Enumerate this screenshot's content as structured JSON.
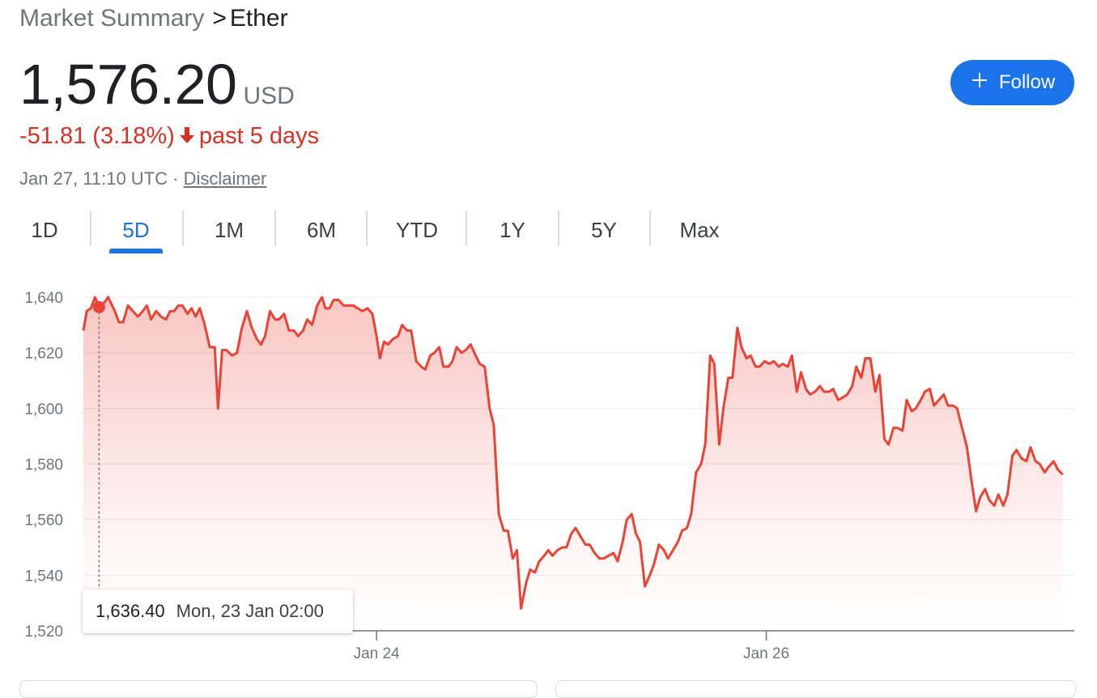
{
  "breadcrumb": {
    "parent": "Market Summary",
    "separator": ">",
    "current": "Ether"
  },
  "quote": {
    "price": "1,576.20",
    "currency": "USD",
    "change": "-51.81 (3.18%)",
    "period": "past 5 days",
    "timestamp": "Jan 27, 11:10 UTC ·",
    "disclaimer": "Disclaimer"
  },
  "follow": {
    "label": "Follow",
    "icon": "plus-icon"
  },
  "tabs": [
    {
      "label": "1D",
      "active": false
    },
    {
      "label": "5D",
      "active": true
    },
    {
      "label": "1M",
      "active": false
    },
    {
      "label": "6M",
      "active": false
    },
    {
      "label": "YTD",
      "active": false
    },
    {
      "label": "1Y",
      "active": false
    },
    {
      "label": "5Y",
      "active": false
    },
    {
      "label": "Max",
      "active": false
    }
  ],
  "tooltip": {
    "value": "1,636.40",
    "date": "Mon, 23 Jan 02:00"
  },
  "colors": {
    "down": "#d93025",
    "line": "#ea4335",
    "accent": "#1a73e8",
    "muted": "#70757a"
  },
  "chart_data": {
    "type": "line",
    "title": "",
    "xlabel": "",
    "ylabel": "",
    "ylim": [
      1520,
      1640
    ],
    "y_ticks": [
      1640,
      1620,
      1600,
      1580,
      1560,
      1540,
      1520
    ],
    "y_tick_labels": [
      "1,640",
      "1,620",
      "1,600",
      "1,580",
      "1,560",
      "1,540",
      "1,520"
    ],
    "x_tick_labels": [
      {
        "label": "Jan 24",
        "t": 35.5
      },
      {
        "label": "Jan 26",
        "t": 82.7
      }
    ],
    "x_unit": "hours",
    "highlight": {
      "t": 1.9,
      "y": 1636.4
    },
    "grid": true,
    "area_fill": true,
    "series": [
      {
        "values": [
          [
            0,
            1628
          ],
          [
            0.4,
            1635
          ],
          [
            0.9,
            1636
          ],
          [
            1.4,
            1640
          ],
          [
            1.9,
            1636.4
          ],
          [
            2.5,
            1638
          ],
          [
            3.0,
            1640
          ],
          [
            3.8,
            1635
          ],
          [
            4.3,
            1631
          ],
          [
            4.8,
            1631
          ],
          [
            5.4,
            1637
          ],
          [
            6.0,
            1635
          ],
          [
            6.6,
            1633
          ],
          [
            7.2,
            1635
          ],
          [
            7.7,
            1637
          ],
          [
            8.2,
            1632
          ],
          [
            8.8,
            1635
          ],
          [
            9.4,
            1633
          ],
          [
            10.0,
            1632
          ],
          [
            10.5,
            1635
          ],
          [
            11.0,
            1635
          ],
          [
            11.5,
            1637
          ],
          [
            12.0,
            1637
          ],
          [
            12.6,
            1634
          ],
          [
            13.1,
            1636
          ],
          [
            13.6,
            1633
          ],
          [
            14.1,
            1636
          ],
          [
            14.7,
            1630
          ],
          [
            15.3,
            1622
          ],
          [
            15.9,
            1622
          ],
          [
            16.3,
            1600
          ],
          [
            16.8,
            1621
          ],
          [
            17.3,
            1621
          ],
          [
            18.0,
            1619
          ],
          [
            18.6,
            1620
          ],
          [
            19.2,
            1629
          ],
          [
            19.8,
            1635
          ],
          [
            20.4,
            1629
          ],
          [
            21.0,
            1625
          ],
          [
            21.5,
            1623
          ],
          [
            22.0,
            1626
          ],
          [
            22.6,
            1635
          ],
          [
            23.2,
            1632
          ],
          [
            23.7,
            1632
          ],
          [
            24.3,
            1634
          ],
          [
            24.9,
            1628
          ],
          [
            25.5,
            1628
          ],
          [
            26.0,
            1626
          ],
          [
            26.6,
            1628
          ],
          [
            27.1,
            1632
          ],
          [
            27.7,
            1630
          ],
          [
            28.3,
            1637
          ],
          [
            28.9,
            1640
          ],
          [
            29.3,
            1636
          ],
          [
            29.8,
            1636
          ],
          [
            30.3,
            1639
          ],
          [
            30.9,
            1639
          ],
          [
            31.5,
            1637
          ],
          [
            32.1,
            1637
          ],
          [
            32.7,
            1637
          ],
          [
            33.2,
            1636
          ],
          [
            33.8,
            1635
          ],
          [
            34.4,
            1636
          ],
          [
            35.0,
            1634
          ],
          [
            35.5,
            1626
          ],
          [
            35.9,
            1618
          ],
          [
            36.4,
            1624
          ],
          [
            36.9,
            1623
          ],
          [
            37.5,
            1625
          ],
          [
            38.1,
            1626
          ],
          [
            38.6,
            1630
          ],
          [
            39.2,
            1628
          ],
          [
            39.7,
            1628
          ],
          [
            40.3,
            1617
          ],
          [
            40.9,
            1615
          ],
          [
            41.4,
            1614
          ],
          [
            42.0,
            1619
          ],
          [
            42.5,
            1620
          ],
          [
            43.1,
            1622
          ],
          [
            43.6,
            1615
          ],
          [
            44.2,
            1615
          ],
          [
            44.7,
            1617
          ],
          [
            45.2,
            1622
          ],
          [
            45.8,
            1620
          ],
          [
            46.3,
            1621
          ],
          [
            46.9,
            1623
          ],
          [
            47.5,
            1619
          ],
          [
            48.0,
            1616
          ],
          [
            48.6,
            1615
          ],
          [
            49.2,
            1600
          ],
          [
            49.7,
            1594
          ],
          [
            50.3,
            1562
          ],
          [
            50.9,
            1556
          ],
          [
            51.4,
            1556
          ],
          [
            52.0,
            1546
          ],
          [
            52.5,
            1549
          ],
          [
            53.0,
            1528
          ],
          [
            53.6,
            1537
          ],
          [
            54.1,
            1542
          ],
          [
            54.7,
            1541
          ],
          [
            55.2,
            1545
          ],
          [
            55.8,
            1547
          ],
          [
            56.3,
            1549
          ],
          [
            56.8,
            1547
          ],
          [
            57.4,
            1549
          ],
          [
            58.0,
            1550
          ],
          [
            58.5,
            1550
          ],
          [
            59.1,
            1555
          ],
          [
            59.6,
            1557
          ],
          [
            60.2,
            1554
          ],
          [
            60.8,
            1551
          ],
          [
            61.3,
            1551
          ],
          [
            61.9,
            1548
          ],
          [
            62.5,
            1546
          ],
          [
            63.0,
            1546
          ],
          [
            63.6,
            1547
          ],
          [
            64.2,
            1548
          ],
          [
            64.7,
            1545
          ],
          [
            65.3,
            1552
          ],
          [
            65.8,
            1560
          ],
          [
            66.4,
            1562
          ],
          [
            66.9,
            1555
          ],
          [
            67.4,
            1552
          ],
          [
            68.0,
            1536
          ],
          [
            68.6,
            1540
          ],
          [
            69.1,
            1544
          ],
          [
            69.7,
            1551
          ],
          [
            70.3,
            1549
          ],
          [
            70.8,
            1546
          ],
          [
            71.4,
            1549
          ],
          [
            72.0,
            1552
          ],
          [
            72.5,
            1556
          ],
          [
            73.1,
            1557
          ],
          [
            73.6,
            1562
          ],
          [
            74.2,
            1577
          ],
          [
            74.8,
            1580
          ],
          [
            75.3,
            1587
          ],
          [
            75.9,
            1619
          ],
          [
            76.4,
            1616
          ],
          [
            77.0,
            1587
          ],
          [
            77.5,
            1600
          ],
          [
            78.1,
            1611
          ],
          [
            78.6,
            1611
          ],
          [
            79.2,
            1629
          ],
          [
            79.7,
            1622
          ],
          [
            80.3,
            1618
          ],
          [
            80.8,
            1619
          ],
          [
            81.4,
            1615
          ],
          [
            81.9,
            1615
          ],
          [
            82.5,
            1617
          ],
          [
            83.1,
            1616
          ],
          [
            83.6,
            1617
          ],
          [
            84.2,
            1615
          ],
          [
            84.7,
            1616
          ],
          [
            85.3,
            1615
          ],
          [
            85.8,
            1619
          ],
          [
            86.4,
            1606
          ],
          [
            86.9,
            1613
          ],
          [
            87.5,
            1607
          ],
          [
            88.0,
            1605
          ],
          [
            88.6,
            1606
          ],
          [
            89.2,
            1608
          ],
          [
            89.7,
            1606
          ],
          [
            90.3,
            1606
          ],
          [
            90.8,
            1607
          ],
          [
            91.4,
            1603
          ],
          [
            92.0,
            1604
          ],
          [
            92.5,
            1605
          ],
          [
            93.1,
            1608
          ],
          [
            93.6,
            1615
          ],
          [
            94.2,
            1611
          ],
          [
            94.7,
            1618
          ],
          [
            95.3,
            1618
          ],
          [
            95.9,
            1606
          ],
          [
            96.4,
            1612
          ],
          [
            97.0,
            1589
          ],
          [
            97.5,
            1587
          ],
          [
            98.1,
            1593
          ],
          [
            98.6,
            1593
          ],
          [
            99.2,
            1592
          ],
          [
            99.7,
            1603
          ],
          [
            100.3,
            1599
          ],
          [
            100.8,
            1600
          ],
          [
            101.4,
            1603
          ],
          [
            101.9,
            1606
          ],
          [
            102.5,
            1607
          ],
          [
            103.0,
            1601
          ],
          [
            103.6,
            1603
          ],
          [
            104.2,
            1605
          ],
          [
            104.7,
            1601
          ],
          [
            105.3,
            1601
          ],
          [
            105.8,
            1600
          ],
          [
            106.4,
            1593
          ],
          [
            107.0,
            1586
          ],
          [
            107.5,
            1575
          ],
          [
            108.1,
            1563
          ],
          [
            108.6,
            1568
          ],
          [
            109.2,
            1571
          ],
          [
            109.7,
            1567
          ],
          [
            110.3,
            1565
          ],
          [
            110.8,
            1569
          ],
          [
            111.4,
            1565
          ],
          [
            111.9,
            1569
          ],
          [
            112.5,
            1583
          ],
          [
            113.0,
            1585
          ],
          [
            113.6,
            1582
          ],
          [
            114.2,
            1581
          ],
          [
            114.7,
            1586
          ],
          [
            115.3,
            1581
          ],
          [
            115.8,
            1580
          ],
          [
            116.4,
            1577
          ],
          [
            116.9,
            1579
          ],
          [
            117.5,
            1581
          ],
          [
            118.0,
            1578
          ],
          [
            118.6,
            1576.2
          ]
        ]
      }
    ]
  }
}
